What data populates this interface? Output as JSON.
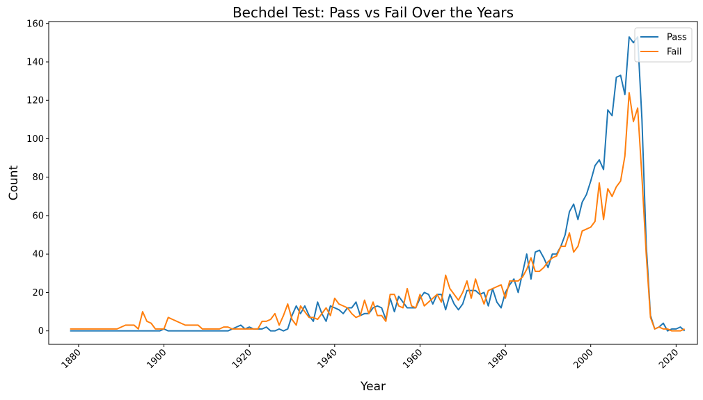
{
  "chart_data": {
    "type": "line",
    "title": "Bechdel Test: Pass vs Fail Over the Years",
    "xlabel": "Year",
    "ylabel": "Count",
    "xlim": [
      1873,
      2025
    ],
    "ylim": [
      -7,
      161
    ],
    "xticks": [
      1880,
      1900,
      1920,
      1940,
      1960,
      1980,
      2000,
      2020
    ],
    "yticks": [
      0,
      20,
      40,
      60,
      80,
      100,
      120,
      140,
      160
    ],
    "grid": false,
    "legend_position": "top-right",
    "x": [
      1878,
      1879,
      1880,
      1881,
      1882,
      1883,
      1884,
      1885,
      1886,
      1887,
      1888,
      1889,
      1890,
      1891,
      1892,
      1893,
      1894,
      1895,
      1896,
      1897,
      1898,
      1899,
      1900,
      1901,
      1902,
      1903,
      1904,
      1905,
      1906,
      1907,
      1908,
      1909,
      1910,
      1911,
      1912,
      1913,
      1914,
      1915,
      1916,
      1917,
      1918,
      1919,
      1920,
      1921,
      1922,
      1923,
      1924,
      1925,
      1926,
      1927,
      1928,
      1929,
      1930,
      1931,
      1932,
      1933,
      1934,
      1935,
      1936,
      1937,
      1938,
      1939,
      1940,
      1941,
      1942,
      1943,
      1944,
      1945,
      1946,
      1947,
      1948,
      1949,
      1950,
      1951,
      1952,
      1953,
      1954,
      1955,
      1956,
      1957,
      1958,
      1959,
      1960,
      1961,
      1962,
      1963,
      1964,
      1965,
      1966,
      1967,
      1968,
      1969,
      1970,
      1971,
      1972,
      1973,
      1974,
      1975,
      1976,
      1977,
      1978,
      1979,
      1980,
      1981,
      1982,
      1983,
      1984,
      1985,
      1986,
      1987,
      1988,
      1989,
      1990,
      1991,
      1992,
      1993,
      1994,
      1995,
      1996,
      1997,
      1998,
      1999,
      2000,
      2001,
      2002,
      2003,
      2004,
      2005,
      2006,
      2007,
      2008,
      2009,
      2010,
      2011,
      2012,
      2013,
      2014,
      2015,
      2016,
      2017,
      2018,
      2019,
      2020,
      2021,
      2022
    ],
    "series": [
      {
        "name": "Pass",
        "color": "#1f77b4",
        "values": [
          0,
          0,
          0,
          0,
          0,
          0,
          0,
          0,
          0,
          0,
          0,
          0,
          0,
          0,
          0,
          0,
          0,
          0,
          0,
          0,
          0,
          0,
          1,
          0,
          0,
          0,
          0,
          0,
          0,
          0,
          0,
          0,
          0,
          0,
          0,
          0,
          0,
          0,
          1,
          2,
          3,
          1,
          2,
          1,
          1,
          1,
          2,
          0,
          0,
          1,
          0,
          1,
          8,
          13,
          9,
          13,
          8,
          5,
          15,
          9,
          5,
          13,
          12,
          11,
          9,
          12,
          12,
          15,
          8,
          9,
          9,
          12,
          13,
          12,
          6,
          17,
          10,
          18,
          15,
          12,
          12,
          12,
          17,
          20,
          19,
          14,
          19,
          19,
          11,
          19,
          14,
          11,
          14,
          21,
          21,
          21,
          19,
          20,
          13,
          22,
          15,
          12,
          20,
          24,
          27,
          20,
          30,
          40,
          27,
          41,
          42,
          38,
          33,
          40,
          40,
          44,
          50,
          62,
          66,
          58,
          67,
          71,
          78,
          86,
          89,
          84,
          115,
          112,
          132,
          133,
          123,
          153,
          150,
          153,
          110,
          45,
          8,
          1,
          2,
          4,
          0,
          1,
          1,
          2,
          0
        ]
      },
      {
        "name": "Fail",
        "color": "#ff7f0e",
        "values": [
          1,
          1,
          1,
          1,
          1,
          1,
          1,
          1,
          1,
          1,
          1,
          1,
          2,
          3,
          3,
          3,
          1,
          10,
          5,
          4,
          1,
          1,
          1,
          7,
          6,
          5,
          4,
          3,
          3,
          3,
          3,
          1,
          1,
          1,
          1,
          1,
          2,
          2,
          1,
          1,
          1,
          1,
          1,
          1,
          1,
          5,
          5,
          6,
          9,
          3,
          8,
          14,
          6,
          3,
          13,
          10,
          7,
          7,
          6,
          9,
          12,
          8,
          17,
          14,
          13,
          12,
          9,
          7,
          8,
          16,
          9,
          15,
          8,
          8,
          5,
          19,
          19,
          13,
          12,
          22,
          13,
          12,
          19,
          13,
          15,
          17,
          19,
          15,
          29,
          22,
          19,
          16,
          20,
          26,
          17,
          27,
          20,
          14,
          21,
          22,
          23,
          24,
          17,
          26,
          26,
          26,
          28,
          32,
          38,
          31,
          31,
          33,
          36,
          38,
          39,
          44,
          44,
          51,
          41,
          44,
          52,
          53,
          54,
          57,
          77,
          58,
          74,
          70,
          75,
          78,
          91,
          124,
          109,
          116,
          80,
          40,
          7,
          1,
          2,
          1,
          1,
          0,
          0,
          0,
          1
        ]
      }
    ]
  }
}
